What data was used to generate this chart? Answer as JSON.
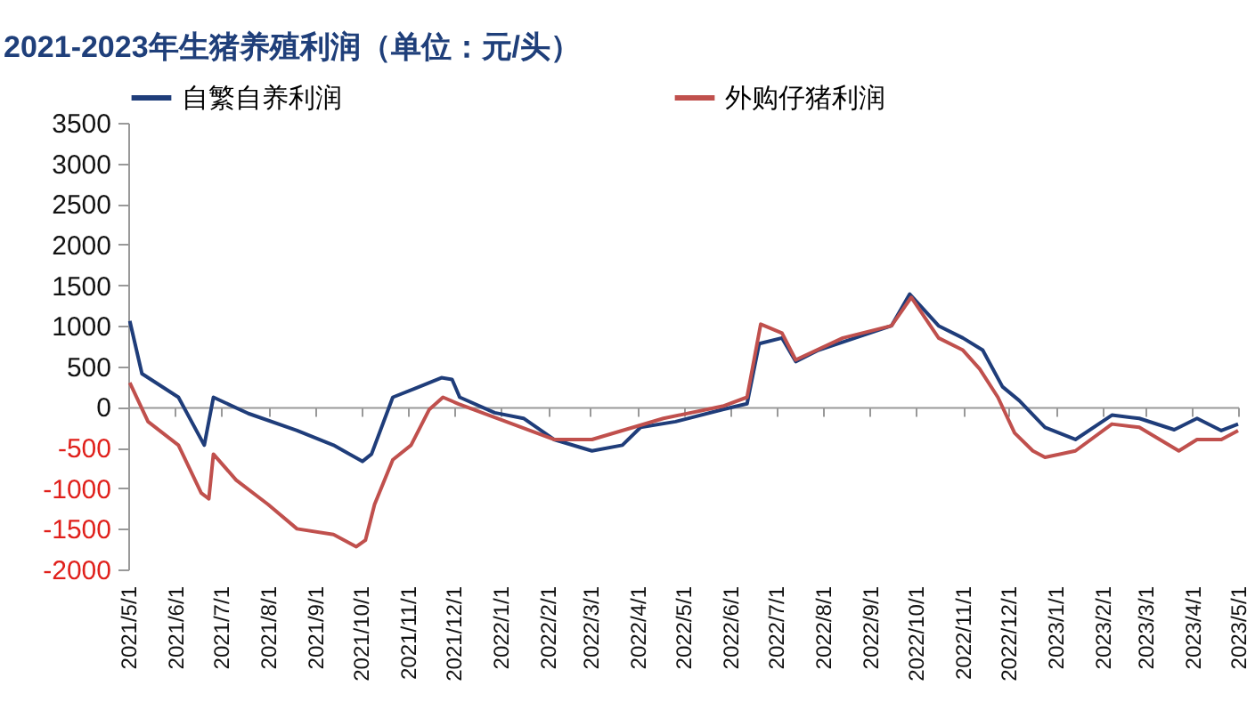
{
  "chart_data": {
    "type": "line",
    "title": "2021-2023年生猪养殖利润（单位：元/头）",
    "series": [
      {
        "name": "自繁自养利润",
        "color": "#1f3d7a",
        "x": [
          "2021-05-02",
          "2021-05-10",
          "2021-06-03",
          "2021-06-20",
          "2021-06-26",
          "2021-07-19",
          "2021-08-20",
          "2021-09-13",
          "2021-10-02",
          "2021-10-08",
          "2021-10-22",
          "2021-11-06",
          "2021-11-23",
          "2021-11-30",
          "2021-12-05",
          "2021-12-28",
          "2022-01-16",
          "2022-02-05",
          "2022-03-02",
          "2022-03-22",
          "2022-04-03",
          "2022-04-26",
          "2022-05-27",
          "2022-06-12",
          "2022-06-20",
          "2022-07-05",
          "2022-07-14",
          "2022-07-29",
          "2022-08-22",
          "2022-09-15",
          "2022-09-27",
          "2022-10-16",
          "2022-11-01",
          "2022-11-14",
          "2022-11-27",
          "2022-12-08",
          "2022-12-25",
          "2023-01-14",
          "2023-02-07",
          "2023-02-25",
          "2023-03-20",
          "2023-04-04",
          "2023-04-20",
          "2023-05-01"
        ],
        "values": [
          1060,
          410,
          120,
          -470,
          120,
          -80,
          -290,
          -470,
          -670,
          -580,
          120,
          230,
          360,
          340,
          120,
          -70,
          -140,
          -400,
          -540,
          -470,
          -250,
          -180,
          -30,
          40,
          780,
          850,
          560,
          700,
          850,
          1000,
          1390,
          1000,
          850,
          700,
          250,
          80,
          -250,
          -400,
          -100,
          -140,
          -280,
          -140,
          -290,
          -210
        ]
      },
      {
        "name": "外购仔猪利润",
        "color": "#c0504d",
        "x": [
          "2021-05-02",
          "2021-05-14",
          "2021-06-03",
          "2021-06-18",
          "2021-06-23",
          "2021-06-26",
          "2021-07-11",
          "2021-08-01",
          "2021-08-20",
          "2021-09-13",
          "2021-09-28",
          "2021-10-04",
          "2021-10-10",
          "2021-10-22",
          "2021-11-03",
          "2021-11-15",
          "2021-11-24",
          "2021-12-04",
          "2022-02-05",
          "2022-03-02",
          "2022-04-18",
          "2022-05-27",
          "2022-06-12",
          "2022-06-21",
          "2022-07-05",
          "2022-07-14",
          "2022-08-14",
          "2022-09-15",
          "2022-09-28",
          "2022-10-16",
          "2022-11-01",
          "2022-11-12",
          "2022-11-24",
          "2022-12-05",
          "2022-12-17",
          "2022-12-25",
          "2023-01-14",
          "2023-02-07",
          "2023-02-25",
          "2023-03-23",
          "2023-04-04",
          "2023-04-20",
          "2023-05-01"
        ],
        "values": [
          300,
          -180,
          -470,
          -1060,
          -1130,
          -580,
          -900,
          -1200,
          -1500,
          -1570,
          -1720,
          -1640,
          -1200,
          -650,
          -470,
          -30,
          120,
          40,
          -400,
          -400,
          -140,
          10,
          120,
          1020,
          910,
          580,
          850,
          1000,
          1350,
          850,
          700,
          470,
          120,
          -320,
          -540,
          -620,
          -540,
          -210,
          -250,
          -540,
          -400,
          -400,
          -290
        ]
      }
    ],
    "xlim": [
      "2021-05-01",
      "2023-05-01"
    ],
    "xticks": [
      {
        "value": "2021-05-01",
        "label": "2021/5/1"
      },
      {
        "value": "2021-06-01",
        "label": "2021/6/1"
      },
      {
        "value": "2021-07-01",
        "label": "2021/7/1"
      },
      {
        "value": "2021-08-01",
        "label": "2021/8/1"
      },
      {
        "value": "2021-09-01",
        "label": "2021/9/1"
      },
      {
        "value": "2021-10-01",
        "label": "2021/10/1"
      },
      {
        "value": "2021-11-01",
        "label": "2021/11/1"
      },
      {
        "value": "2021-12-01",
        "label": "2021/12/1"
      },
      {
        "value": "2022-01-01",
        "label": "2022/1/1"
      },
      {
        "value": "2022-02-01",
        "label": "2022/2/1"
      },
      {
        "value": "2022-03-01",
        "label": "2022/3/1"
      },
      {
        "value": "2022-04-01",
        "label": "2022/4/1"
      },
      {
        "value": "2022-05-01",
        "label": "2022/5/1"
      },
      {
        "value": "2022-06-01",
        "label": "2022/6/1"
      },
      {
        "value": "2022-07-01",
        "label": "2022/7/1"
      },
      {
        "value": "2022-08-01",
        "label": "2022/8/1"
      },
      {
        "value": "2022-09-01",
        "label": "2022/9/1"
      },
      {
        "value": "2022-10-01",
        "label": "2022/10/1"
      },
      {
        "value": "2022-11-01",
        "label": "2022/11/1"
      },
      {
        "value": "2022-12-01",
        "label": "2022/12/1"
      },
      {
        "value": "2023-01-01",
        "label": "2023/1/1"
      },
      {
        "value": "2023-02-01",
        "label": "2023/2/1"
      },
      {
        "value": "2023-03-01",
        "label": "2023/3/1"
      },
      {
        "value": "2023-04-01",
        "label": "2023/4/1"
      },
      {
        "value": "2023-05-01",
        "label": "2023/5/1"
      }
    ],
    "ylim": [
      -2000,
      3500
    ],
    "yticks": [
      -2000,
      -1500,
      -1000,
      -500,
      0,
      500,
      1000,
      1500,
      2000,
      2500,
      3000,
      3500
    ],
    "legend": "top",
    "line_style": "solid"
  }
}
